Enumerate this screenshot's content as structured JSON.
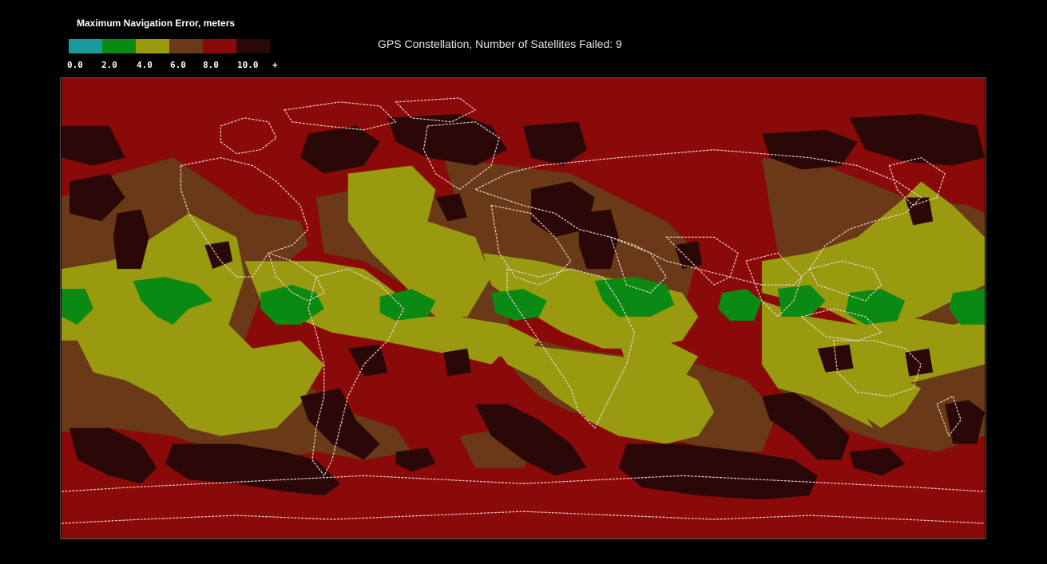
{
  "legend": {
    "title": "Maximum Navigation Error, meters",
    "bins": [
      {
        "color": "#1a9a9a"
      },
      {
        "color": "#0a8a12"
      },
      {
        "color": "#9a9a10"
      },
      {
        "color": "#6a3a18"
      },
      {
        "color": "#8a0a0a"
      },
      {
        "color": "#2a0808"
      }
    ],
    "ticks": [
      "0.0",
      "2.0",
      "4.0",
      "6.0",
      "8.0",
      "10.0",
      "+"
    ]
  },
  "map": {
    "title": "GPS Constellation, Number of Satellites Failed: 9",
    "colors": {
      "teal": "#1a9a9a",
      "green": "#0a8a12",
      "olive": "#9a9a10",
      "brown": "#6a3a18",
      "red": "#8a0a0a",
      "dark": "#2a0808",
      "coastline": "#f0d0d0"
    }
  }
}
